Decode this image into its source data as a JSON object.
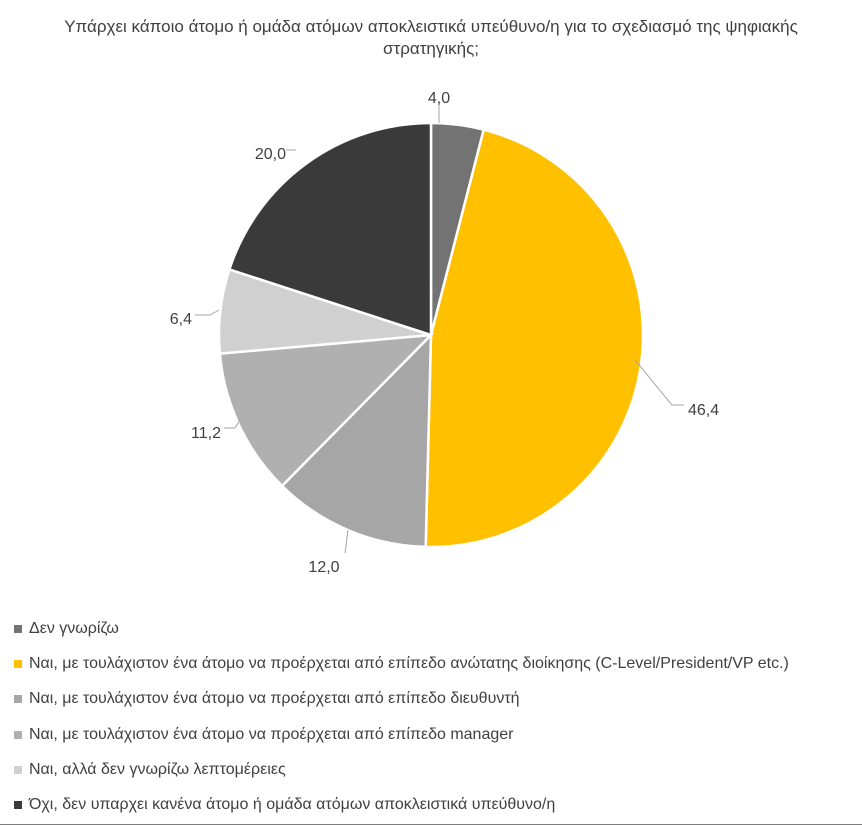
{
  "chart_data": {
    "type": "pie",
    "title": "Υπάρχει κάποιο άτομο ή ομάδα ατόμων αποκλειστικά υπεύθυνο/η για το σχεδιασμό της ψηφιακής στρατηγικής;",
    "categories": [
      "Δεν γνωρίζω",
      "Ναι, με τουλάχιστον ένα άτομο να προέρχεται από επίπεδο ανώτατης διοίκησης (C-Level/President/VP etc.)",
      "Ναι, με τουλάχιστον ένα άτομο να προέρχεται από επίπεδο διευθυντή",
      "Ναι, με τουλάχιστον ένα άτομο να προέρχεται από επίπεδο manager",
      "Ναι, αλλά δεν γνωρίζω λεπτομέρειες",
      "Όχι, δεν υπαρχει κανένα άτομο ή ομάδα ατόμων αποκλειστικά υπεύθυνο/η"
    ],
    "values": [
      4.0,
      46.4,
      12.0,
      11.2,
      6.4,
      20.0
    ],
    "data_labels": [
      "4,0",
      "46,4",
      "12,0",
      "11,2",
      "6,4",
      "20,0"
    ],
    "colors": [
      "#737373",
      "#FFC000",
      "#A6A6A6",
      "#B0B0B0",
      "#D0D0D0",
      "#3A3A3A"
    ],
    "legend": "bottom"
  }
}
